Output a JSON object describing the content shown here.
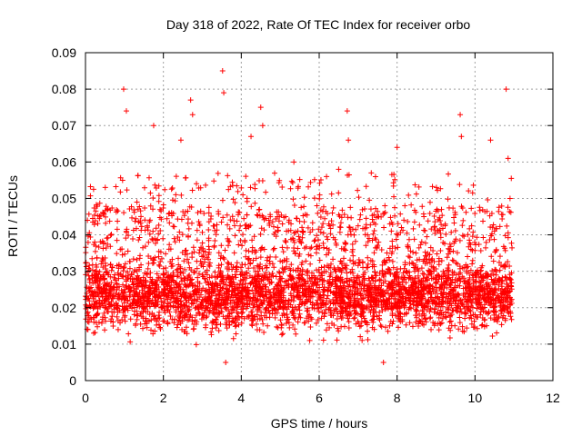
{
  "chart_data": {
    "type": "scatter",
    "title": "Day 318 of 2022, Rate Of TEC Index for receiver orbo",
    "xlabel": "GPS time / hours",
    "ylabel": "ROTI / TECUs",
    "xlim": [
      0,
      12
    ],
    "ylim": [
      0,
      0.09
    ],
    "xticks": [
      "0",
      "2",
      "4",
      "6",
      "8",
      "10",
      "12"
    ],
    "yticks": [
      "0",
      "0.01",
      "0.02",
      "0.03",
      "0.04",
      "0.05",
      "0.06",
      "0.07",
      "0.08",
      "0.09"
    ],
    "grid": true,
    "marker": "plus",
    "color": "#ff0000",
    "x_data_range": [
      0,
      10.95
    ],
    "typical_band": [
      0.008,
      0.035
    ],
    "notable_points": [
      {
        "x": 0.05,
        "y": 0.044
      },
      {
        "x": 0.98,
        "y": 0.08
      },
      {
        "x": 1.05,
        "y": 0.074
      },
      {
        "x": 1.75,
        "y": 0.07
      },
      {
        "x": 2.45,
        "y": 0.066
      },
      {
        "x": 2.7,
        "y": 0.077
      },
      {
        "x": 2.75,
        "y": 0.073
      },
      {
        "x": 3.52,
        "y": 0.085
      },
      {
        "x": 3.55,
        "y": 0.079
      },
      {
        "x": 4.25,
        "y": 0.067
      },
      {
        "x": 4.5,
        "y": 0.075
      },
      {
        "x": 4.55,
        "y": 0.07
      },
      {
        "x": 5.35,
        "y": 0.06
      },
      {
        "x": 6.5,
        "y": 0.058
      },
      {
        "x": 6.72,
        "y": 0.074
      },
      {
        "x": 6.75,
        "y": 0.066
      },
      {
        "x": 8.0,
        "y": 0.064
      },
      {
        "x": 9.62,
        "y": 0.073
      },
      {
        "x": 9.65,
        "y": 0.067
      },
      {
        "x": 10.4,
        "y": 0.066
      },
      {
        "x": 10.8,
        "y": 0.08
      },
      {
        "x": 10.85,
        "y": 0.061
      },
      {
        "x": 10.9,
        "y": 0.05
      },
      {
        "x": 3.6,
        "y": 0.005
      },
      {
        "x": 7.65,
        "y": 0.005
      }
    ],
    "generated_point_count": 4200
  }
}
